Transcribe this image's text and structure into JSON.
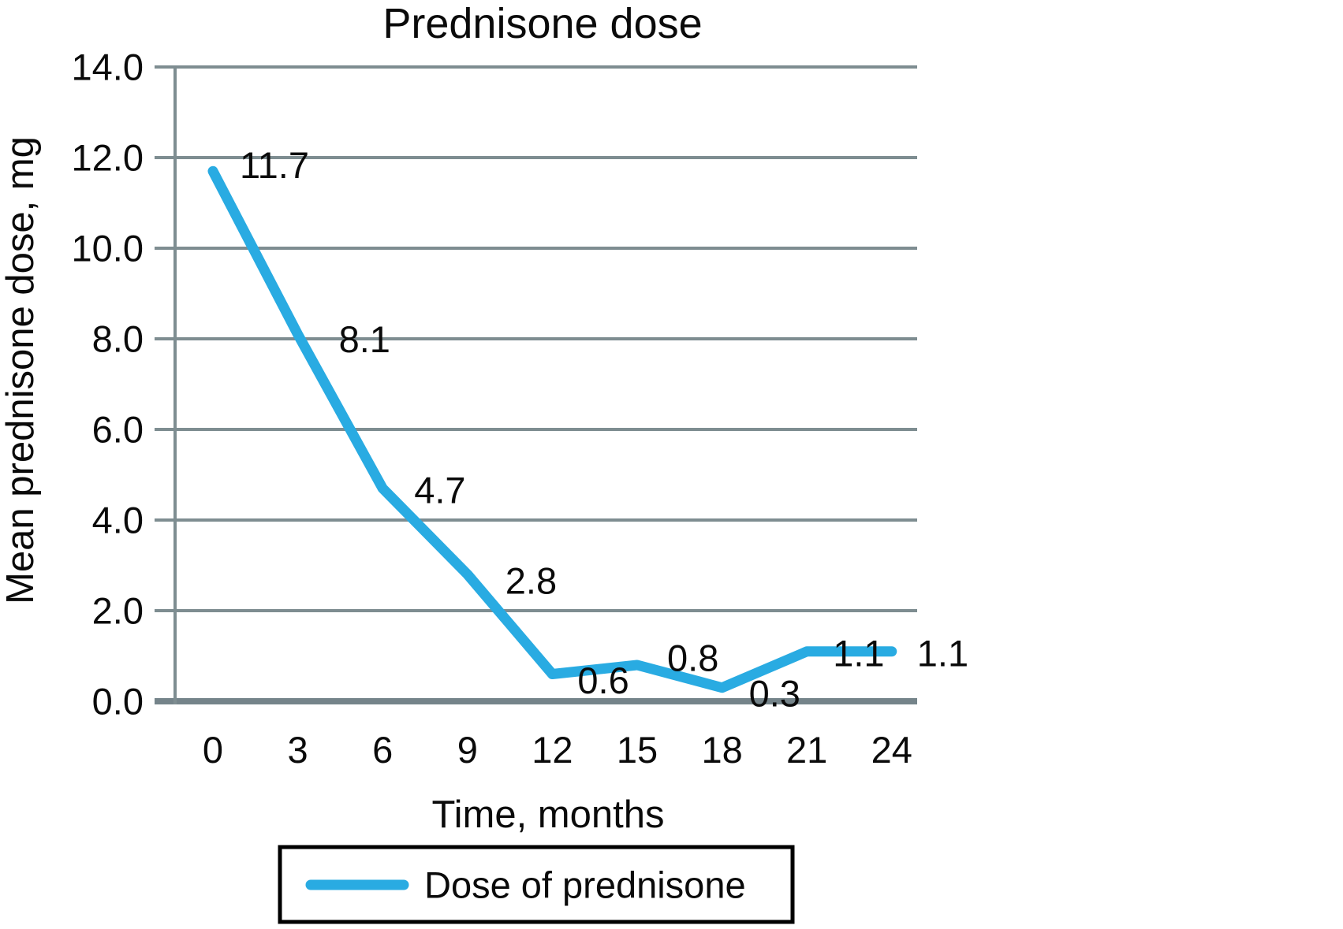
{
  "chart_data": {
    "type": "line",
    "title": "Prednisone dose",
    "xlabel": "Time, months",
    "ylabel": "Mean prednisone dose, mg",
    "x": [
      0,
      3,
      6,
      9,
      12,
      15,
      18,
      21,
      24
    ],
    "xtick_labels": [
      "0",
      "3",
      "6",
      "9",
      "12",
      "15",
      "18",
      "21",
      "24"
    ],
    "ylim": [
      0,
      14
    ],
    "ytick_step": 2,
    "ytick_labels": [
      "0.0",
      "2.0",
      "4.0",
      "6.0",
      "8.0",
      "10.0",
      "12.0",
      "14.0"
    ],
    "grid": true,
    "legend_position": "bottom",
    "series": [
      {
        "name": "Dose of prednisone",
        "values": [
          11.7,
          8.1,
          4.7,
          2.8,
          0.6,
          0.8,
          0.3,
          1.1,
          1.1
        ],
        "data_labels": [
          "11.7",
          "8.1",
          "4.7",
          "2.8",
          "0.6",
          "0.8",
          "0.3",
          "1.1",
          "1.1"
        ]
      }
    ],
    "colors": {
      "line": "#29ABE2",
      "grid": "#7e8d91",
      "axis": "#75848a",
      "text": "#0a0a0a",
      "background": "#ffffff"
    }
  }
}
